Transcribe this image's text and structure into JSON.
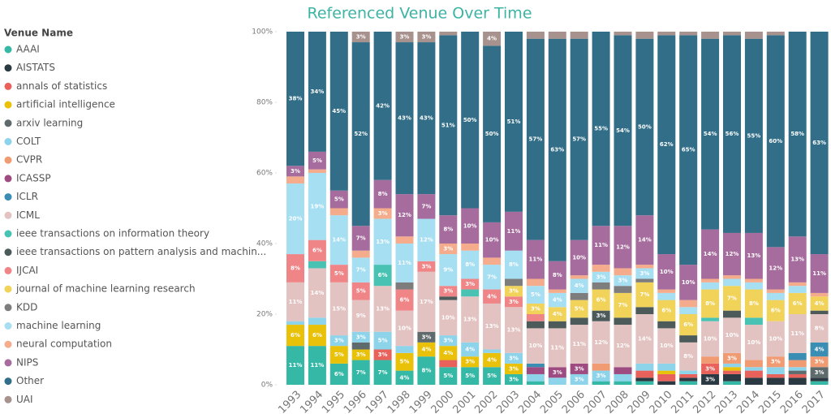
{
  "chart_data": {
    "type": "stacked_bar_100",
    "title": "Referenced Venue Over Time",
    "legend_title": "Venue Name",
    "categories": [
      "1993",
      "1994",
      "1995",
      "1996",
      "1997",
      "1998",
      "1999",
      "2000",
      "2001",
      "2002",
      "2003",
      "2004",
      "2005",
      "2006",
      "2007",
      "2008",
      "2009",
      "2010",
      "2011",
      "2012",
      "2013",
      "2014",
      "2015",
      "2016",
      "2017"
    ],
    "ylim": [
      0,
      100
    ],
    "yticks": [
      {
        "value": 0,
        "label": "0%"
      },
      {
        "value": 20,
        "label": "20%"
      },
      {
        "value": 40,
        "label": "40%"
      },
      {
        "value": 60,
        "label": "60%"
      },
      {
        "value": 80,
        "label": "80%"
      },
      {
        "value": 100,
        "label": "100%"
      }
    ],
    "series": [
      {
        "name": "AAAI",
        "color": "#35B8A6",
        "values": [
          11,
          11,
          6,
          7,
          7,
          4,
          8,
          5,
          5,
          5,
          3,
          1,
          0,
          0,
          1,
          1,
          1,
          0,
          1,
          0,
          1,
          0,
          0,
          0,
          1
        ],
        "value_labels": [
          "11%",
          "11%",
          "6%",
          "7%",
          "7%",
          "4%",
          "8%",
          "5%",
          "5%",
          "5%",
          "3%",
          null,
          null,
          null,
          null,
          null,
          null,
          null,
          null,
          null,
          null,
          null,
          null,
          null,
          null
        ]
      },
      {
        "name": "AISTATS",
        "color": "#2B3A42",
        "values": [
          0,
          0,
          0,
          0,
          0,
          0,
          0,
          0,
          0,
          0,
          0,
          0,
          0,
          0,
          0,
          0,
          1,
          1,
          1,
          3,
          2,
          2,
          2,
          2,
          1
        ],
        "value_labels": [
          null,
          null,
          null,
          null,
          null,
          null,
          null,
          null,
          null,
          null,
          null,
          null,
          null,
          null,
          null,
          null,
          null,
          null,
          null,
          "3%",
          null,
          null,
          null,
          null,
          null
        ]
      },
      {
        "name": "annals of statistics",
        "color": "#E8615B",
        "values": [
          0,
          0,
          0,
          0,
          3,
          0,
          0,
          2,
          0,
          0,
          0,
          0,
          0,
          0,
          0,
          0,
          2,
          2,
          1,
          3,
          1,
          2,
          1,
          1,
          0
        ],
        "value_labels": [
          null,
          null,
          null,
          null,
          "3%",
          null,
          null,
          null,
          null,
          null,
          null,
          null,
          null,
          null,
          null,
          null,
          null,
          null,
          null,
          "3%",
          null,
          null,
          null,
          null,
          null
        ]
      },
      {
        "name": "artificial intelligence",
        "color": "#E9C108",
        "values": [
          6,
          6,
          5,
          3,
          0,
          5,
          4,
          4,
          3,
          4,
          3,
          0,
          0,
          0,
          0,
          0,
          0,
          1,
          0,
          0,
          1,
          0,
          0,
          0,
          0
        ],
        "value_labels": [
          "6%",
          "6%",
          "5%",
          "3%",
          null,
          "5%",
          "4%",
          "4%",
          "3%",
          "4%",
          "3%",
          null,
          null,
          null,
          null,
          null,
          null,
          null,
          null,
          null,
          null,
          null,
          null,
          null,
          null
        ]
      },
      {
        "name": "arxiv learning",
        "color": "#5E6A6B",
        "values": [
          0,
          0,
          0,
          2,
          0,
          0,
          3,
          0,
          0,
          0,
          0,
          0,
          0,
          0,
          0,
          0,
          0,
          0,
          0,
          0,
          0,
          0,
          0,
          1,
          3
        ],
        "value_labels": [
          null,
          null,
          null,
          null,
          null,
          null,
          "3%",
          null,
          null,
          null,
          null,
          null,
          null,
          null,
          null,
          null,
          null,
          null,
          null,
          null,
          null,
          null,
          null,
          null,
          "3%"
        ]
      },
      {
        "name": "COLT",
        "color": "#8DD3EA",
        "values": [
          1,
          2,
          3,
          3,
          5,
          2,
          0,
          3,
          4,
          1,
          3,
          2,
          2,
          3,
          3,
          2,
          2,
          2,
          1,
          0,
          1,
          1,
          2,
          1,
          0
        ],
        "value_labels": [
          null,
          null,
          "3%",
          "3%",
          "5%",
          null,
          null,
          "3%",
          "4%",
          null,
          "3%",
          null,
          null,
          "3%",
          "3%",
          null,
          null,
          null,
          null,
          null,
          null,
          null,
          null,
          null,
          null
        ]
      },
      {
        "name": "CVPR",
        "color": "#F19B73",
        "values": [
          0,
          0,
          0,
          0,
          0,
          0,
          0,
          0,
          0,
          0,
          0,
          0,
          0,
          0,
          2,
          0,
          0,
          0,
          0,
          2,
          3,
          2,
          3,
          2,
          3
        ],
        "value_labels": [
          null,
          null,
          null,
          null,
          null,
          null,
          null,
          null,
          null,
          null,
          null,
          null,
          null,
          null,
          null,
          null,
          null,
          null,
          null,
          null,
          "3%",
          null,
          "3%",
          null,
          "3%"
        ]
      },
      {
        "name": "ICASSP",
        "color": "#9E4B82",
        "values": [
          0,
          0,
          0,
          0,
          0,
          0,
          0,
          0,
          0,
          0,
          0,
          2,
          3,
          3,
          0,
          2,
          0,
          0,
          0,
          0,
          0,
          0,
          0,
          0,
          0
        ],
        "value_labels": [
          null,
          null,
          null,
          null,
          null,
          null,
          null,
          null,
          null,
          null,
          null,
          null,
          "3%",
          "3%",
          null,
          null,
          null,
          null,
          null,
          null,
          null,
          null,
          null,
          null,
          null
        ]
      },
      {
        "name": "ICLR",
        "color": "#3A8DB3",
        "values": [
          0,
          0,
          0,
          0,
          0,
          0,
          0,
          0,
          0,
          0,
          0,
          1,
          0,
          0,
          0,
          0,
          0,
          0,
          0,
          0,
          0,
          0,
          0,
          2,
          4
        ],
        "value_labels": [
          null,
          null,
          null,
          null,
          null,
          null,
          null,
          null,
          null,
          null,
          null,
          null,
          null,
          null,
          null,
          null,
          null,
          null,
          null,
          null,
          null,
          null,
          null,
          null,
          "4%"
        ]
      },
      {
        "name": "ICML",
        "color": "#E2C3C1",
        "values": [
          11,
          14,
          15,
          9,
          13,
          10,
          17,
          10,
          13,
          13,
          13,
          10,
          11,
          11,
          12,
          12,
          14,
          10,
          8,
          10,
          10,
          10,
          10,
          11,
          8
        ],
        "value_labels": [
          "11%",
          "14%",
          "15%",
          "9%",
          "13%",
          "10%",
          "17%",
          "10%",
          "13%",
          "13%",
          "13%",
          "10%",
          "11%",
          "11%",
          "12%",
          "12%",
          "14%",
          "10%",
          "8%",
          "10%",
          "10%",
          "10%",
          "10%",
          "11%",
          "8%"
        ]
      },
      {
        "name": "ieee transactions on information theory",
        "color": "#48C3B3",
        "values": [
          0,
          2,
          0,
          0,
          6,
          0,
          0,
          0,
          2,
          0,
          0,
          0,
          0,
          0,
          0,
          0,
          0,
          0,
          0,
          1,
          0,
          2,
          0,
          0,
          0
        ],
        "value_labels": [
          null,
          null,
          null,
          null,
          "6%",
          null,
          null,
          null,
          null,
          null,
          null,
          null,
          null,
          null,
          null,
          null,
          null,
          null,
          null,
          null,
          null,
          null,
          null,
          null,
          null
        ]
      },
      {
        "name": "ieee transactions on pattern analysis and machin...",
        "color": "#4C5A5A",
        "values": [
          0,
          0,
          0,
          0,
          0,
          0,
          0,
          1,
          0,
          0,
          0,
          2,
          2,
          2,
          3,
          2,
          2,
          2,
          2,
          0,
          2,
          0,
          0,
          0,
          1
        ],
        "value_labels": [
          null,
          null,
          null,
          null,
          null,
          null,
          null,
          null,
          null,
          null,
          null,
          null,
          null,
          null,
          "3%",
          null,
          null,
          null,
          null,
          null,
          null,
          null,
          null,
          null,
          null
        ]
      },
      {
        "name": "IJCAI",
        "color": "#F08587",
        "values": [
          8,
          6,
          5,
          5,
          0,
          6,
          3,
          3,
          3,
          4,
          3,
          2,
          0,
          0,
          0,
          0,
          0,
          0,
          0,
          0,
          0,
          0,
          0,
          0,
          0
        ],
        "value_labels": [
          "8%",
          "6%",
          "5%",
          "5%",
          null,
          "6%",
          "3%",
          "3%",
          "3%",
          "4%",
          "3%",
          null,
          null,
          null,
          null,
          null,
          null,
          null,
          null,
          null,
          null,
          null,
          null,
          null,
          null
        ]
      },
      {
        "name": "journal of machine learning research",
        "color": "#F1D35A",
        "values": [
          0,
          0,
          0,
          0,
          0,
          0,
          0,
          0,
          0,
          0,
          3,
          3,
          4,
          5,
          6,
          7,
          7,
          6,
          6,
          8,
          7,
          8,
          6,
          6,
          4
        ],
        "value_labels": [
          null,
          null,
          null,
          null,
          null,
          null,
          null,
          null,
          null,
          null,
          "3%",
          "3%",
          "4%",
          "5%",
          "6%",
          "7%",
          "7%",
          "6%",
          "6%",
          "8%",
          "7%",
          "8%",
          "6%",
          "6%",
          "4%"
        ]
      },
      {
        "name": "KDD",
        "color": "#7D7D7D",
        "values": [
          0,
          0,
          0,
          0,
          0,
          2,
          0,
          0,
          0,
          0,
          2,
          0,
          0,
          2,
          2,
          2,
          1,
          0,
          0,
          0,
          0,
          0,
          0,
          0,
          0
        ],
        "value_labels": [
          null,
          null,
          null,
          null,
          null,
          null,
          null,
          null,
          null,
          null,
          null,
          null,
          null,
          null,
          null,
          null,
          null,
          null,
          null,
          null,
          null,
          null,
          null,
          null,
          null
        ]
      },
      {
        "name": "machine learning",
        "color": "#A6DEF2",
        "values": [
          20,
          19,
          14,
          7,
          13,
          11,
          12,
          9,
          8,
          7,
          8,
          5,
          4,
          4,
          3,
          3,
          3,
          2,
          2,
          2,
          2,
          2,
          2,
          2,
          0
        ],
        "value_labels": [
          "20%",
          "19%",
          "14%",
          "7%",
          "13%",
          "11%",
          "12%",
          "9%",
          "8%",
          "7%",
          "8%",
          "5%",
          "4%",
          "4%",
          "3%",
          "3%",
          "3%",
          null,
          null,
          null,
          null,
          null,
          null,
          null,
          null
        ]
      },
      {
        "name": "neural computation",
        "color": "#F5AC8C",
        "values": [
          2,
          1,
          2,
          2,
          3,
          2,
          0,
          3,
          2,
          2,
          0,
          2,
          1,
          1,
          2,
          2,
          1,
          1,
          2,
          1,
          1,
          1,
          1,
          1,
          1
        ],
        "value_labels": [
          null,
          null,
          null,
          null,
          "3%",
          null,
          null,
          "3%",
          null,
          null,
          null,
          null,
          null,
          null,
          null,
          null,
          null,
          null,
          null,
          null,
          null,
          null,
          null,
          null,
          null
        ]
      },
      {
        "name": "NIPS",
        "color": "#A66C9E",
        "values": [
          3,
          5,
          5,
          7,
          8,
          12,
          7,
          8,
          10,
          10,
          11,
          11,
          8,
          10,
          11,
          12,
          14,
          10,
          10,
          14,
          12,
          13,
          12,
          13,
          11
        ],
        "value_labels": [
          "3%",
          "5%",
          "5%",
          "7%",
          "8%",
          "12%",
          "7%",
          "8%",
          "10%",
          "10%",
          "11%",
          "11%",
          "8%",
          "10%",
          "11%",
          "12%",
          "14%",
          "10%",
          "10%",
          "14%",
          "12%",
          "13%",
          "12%",
          "13%",
          "11%"
        ]
      },
      {
        "name": "Other",
        "color": "#326E87",
        "values": [
          38,
          34,
          45,
          52,
          42,
          43,
          43,
          51,
          50,
          50,
          51,
          57,
          63,
          57,
          55,
          54,
          50,
          62,
          65,
          54,
          56,
          55,
          60,
          58,
          63
        ],
        "value_labels": [
          "38%",
          "34%",
          "45%",
          "52%",
          "42%",
          "43%",
          "43%",
          "51%",
          "50%",
          "50%",
          "51%",
          "57%",
          "63%",
          "57%",
          "55%",
          "54%",
          "50%",
          "62%",
          "65%",
          "54%",
          "56%",
          "55%",
          "60%",
          "58%",
          "63%"
        ]
      },
      {
        "name": "UAI",
        "color": "#A8928D",
        "values": [
          0,
          0,
          0,
          3,
          0,
          3,
          3,
          1,
          0,
          4,
          0,
          2,
          2,
          2,
          0,
          1,
          2,
          1,
          1,
          2,
          1,
          2,
          1,
          0,
          0
        ],
        "value_labels": [
          null,
          null,
          null,
          "3%",
          null,
          "3%",
          "3%",
          null,
          null,
          "4%",
          null,
          null,
          null,
          null,
          null,
          null,
          null,
          null,
          null,
          null,
          null,
          null,
          null,
          null,
          null
        ]
      }
    ]
  }
}
